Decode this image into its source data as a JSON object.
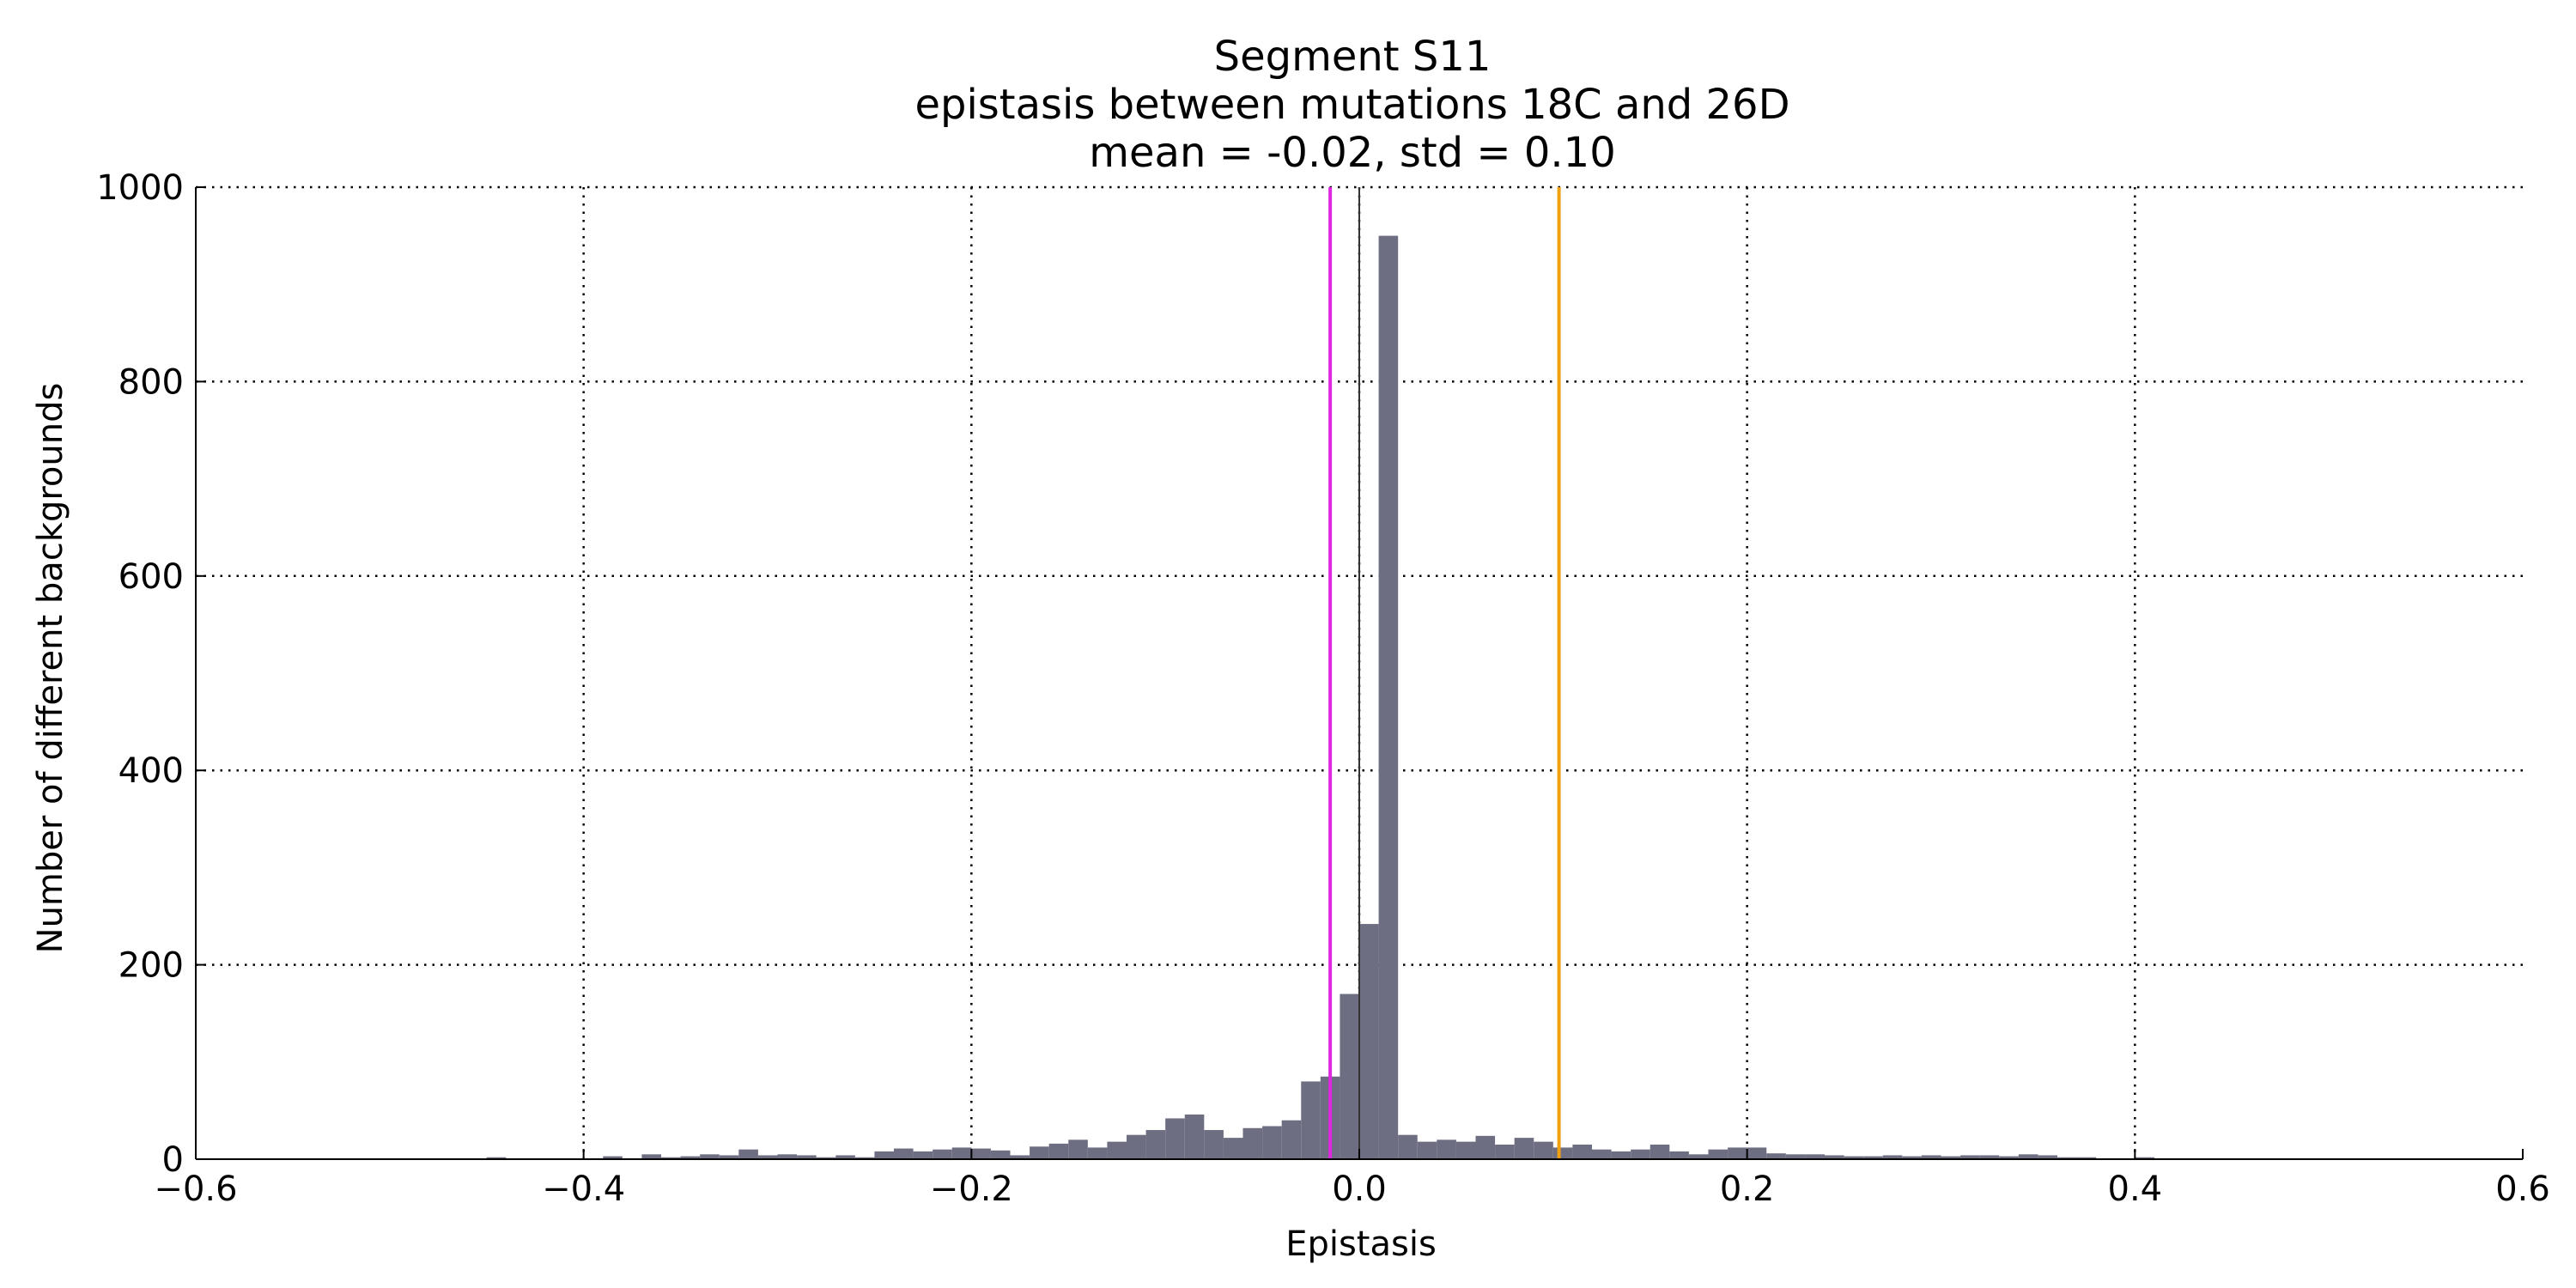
{
  "chart_data": {
    "type": "bar",
    "title_lines": [
      "Segment S11",
      "epistasis between mutations 18C and 26D",
      "mean = -0.02, std = 0.10"
    ],
    "xlabel": "Epistasis",
    "ylabel": "Number of different backgrounds",
    "xlim": [
      -0.6,
      0.6
    ],
    "ylim": [
      0,
      1000
    ],
    "xticks": [
      -0.6,
      -0.4,
      -0.2,
      0.0,
      0.2,
      0.4,
      0.6
    ],
    "xtick_labels": [
      "−0.6",
      "−0.4",
      "−0.2",
      "0.0",
      "0.2",
      "0.4",
      "0.6"
    ],
    "yticks": [
      0,
      200,
      400,
      600,
      800,
      1000
    ],
    "ytick_labels": [
      "0",
      "200",
      "400",
      "600",
      "800",
      "1000"
    ],
    "grid": true,
    "bar_color": "#6e6e82",
    "bin_start": -0.6,
    "bin_width": 0.01,
    "values": [
      1,
      1,
      1,
      1,
      1,
      1,
      1,
      1,
      1,
      1,
      1,
      1,
      1,
      1,
      1,
      2,
      1,
      1,
      1,
      1,
      1,
      3,
      1,
      5,
      2,
      3,
      5,
      4,
      10,
      4,
      5,
      4,
      2,
      4,
      2,
      8,
      11,
      8,
      10,
      12,
      11,
      9,
      4,
      13,
      16,
      20,
      12,
      18,
      25,
      30,
      42,
      46,
      30,
      22,
      32,
      34,
      40,
      80,
      85,
      170,
      242,
      950,
      25,
      18,
      20,
      18,
      24,
      15,
      22,
      18,
      12,
      15,
      10,
      8,
      10,
      15,
      8,
      5,
      10,
      12,
      12,
      6,
      5,
      5,
      4,
      3,
      3,
      4,
      3,
      4,
      3,
      4,
      4,
      3,
      5,
      4,
      2,
      2,
      1,
      1,
      2,
      1,
      1,
      1,
      1,
      1,
      1,
      1,
      1,
      1,
      1,
      1,
      1,
      1,
      1,
      1,
      1,
      1,
      1,
      1
    ],
    "vlines": [
      {
        "x": -0.015,
        "color": "#e026e0"
      },
      {
        "x": 0.0,
        "color": "#333333"
      },
      {
        "x": 0.103,
        "color": "#f0a010"
      }
    ]
  }
}
